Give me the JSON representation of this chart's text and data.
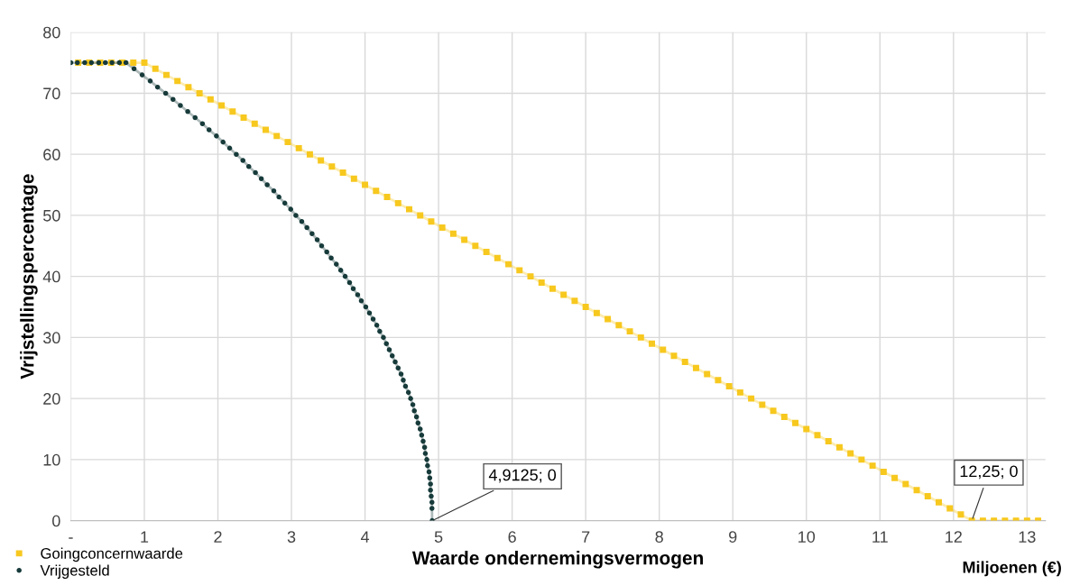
{
  "chart_data": {
    "type": "line",
    "xlabel": "Waarde ondernemingsvermogen",
    "ylabel": "Vrijstellingspercentage",
    "xlim": [
      0,
      13.25
    ],
    "ylim": [
      0,
      80
    ],
    "xticks": [
      {
        "value": 0,
        "label": "-"
      },
      1,
      2,
      3,
      4,
      5,
      6,
      7,
      8,
      9,
      10,
      11,
      12,
      13
    ],
    "yticks": [
      0,
      10,
      20,
      30,
      40,
      50,
      60,
      70,
      80
    ],
    "grid": true,
    "legend": "bottom left",
    "annotations": [
      {
        "text": "4,9125; 0",
        "x": 4.9125,
        "y": 0
      },
      {
        "text": "12,25; 0",
        "x": 12.25,
        "y": 0
      },
      "Miljoenen (€)"
    ],
    "series": [
      {
        "name": "Goingconcernwaarde",
        "color": "#f7c81e",
        "marker": "square",
        "x": [
          0.1,
          0.25,
          0.4,
          0.55,
          0.7,
          0.85,
          1,
          1.15,
          1.3,
          1.45,
          1.6,
          1.75,
          1.9,
          2.05,
          2.2,
          2.35,
          2.5,
          2.65,
          2.8,
          2.95,
          3.1,
          3.25,
          3.4,
          3.55,
          3.7,
          3.85,
          4,
          4.15,
          4.3,
          4.45,
          4.6,
          4.75,
          4.9,
          5.05,
          5.2,
          5.35,
          5.5,
          5.65,
          5.8,
          5.95,
          6.1,
          6.25,
          6.4,
          6.55,
          6.7,
          6.85,
          7,
          7.15,
          7.3,
          7.45,
          7.6,
          7.75,
          7.9,
          8.05,
          8.2,
          8.35,
          8.5,
          8.65,
          8.8,
          8.95,
          9.1,
          9.25,
          9.4,
          9.55,
          9.7,
          9.85,
          10,
          10.15,
          10.3,
          10.45,
          10.6,
          10.75,
          10.9,
          11.05,
          11.2,
          11.35,
          11.5,
          11.65,
          11.8,
          11.95,
          12.1,
          12.25,
          12.4,
          12.55,
          12.7,
          12.85,
          13,
          13.15
        ],
        "values": [
          75,
          75,
          75,
          75,
          75,
          75,
          75,
          74,
          73,
          72,
          71,
          70,
          69,
          68,
          67,
          66,
          65,
          64,
          63,
          62,
          61,
          60,
          59,
          58,
          57,
          56,
          55,
          54,
          53,
          52,
          51,
          50,
          49,
          48,
          47,
          46,
          45,
          44,
          43,
          42,
          41,
          40,
          39,
          38,
          37,
          36,
          35,
          34,
          33,
          32,
          31,
          30,
          29,
          28,
          27,
          26,
          25,
          24,
          23,
          22,
          21,
          20,
          19,
          18,
          17,
          16,
          15,
          14,
          13,
          12,
          11,
          10,
          9,
          8,
          7,
          6,
          5,
          4,
          3,
          2,
          1,
          0,
          0,
          0,
          0,
          0,
          0,
          0
        ]
      },
      {
        "name": "Vrijgesteld",
        "color": "#173a3a",
        "marker": "circle",
        "x": [
          0,
          0.09,
          0.19,
          0.28,
          0.38,
          0.47,
          0.56,
          0.66,
          0.75,
          0.86,
          0.97,
          1.08,
          1.18,
          1.29,
          1.39,
          1.49,
          1.59,
          1.69,
          1.79,
          1.88,
          1.98,
          2.07,
          2.16,
          2.25,
          2.34,
          2.42,
          2.51,
          2.59,
          2.67,
          2.76,
          2.83,
          2.91,
          2.99,
          3.06,
          3.14,
          3.21,
          3.28,
          3.35,
          3.41,
          3.48,
          3.54,
          3.61,
          3.67,
          3.73,
          3.79,
          3.84,
          3.9,
          3.95,
          4.01,
          4.06,
          4.11,
          4.16,
          4.2,
          4.25,
          4.29,
          4.33,
          4.37,
          4.41,
          4.45,
          4.49,
          4.52,
          4.55,
          4.59,
          4.62,
          4.65,
          4.67,
          4.7,
          4.72,
          4.75,
          4.77,
          4.79,
          4.81,
          4.82,
          4.84,
          4.85,
          4.87,
          4.88,
          4.89,
          4.89,
          4.9,
          4.91,
          4.91,
          4.9125
        ],
        "values": [
          75,
          75,
          75,
          75,
          75,
          75,
          75,
          75,
          75,
          74,
          73,
          72,
          71,
          70,
          69,
          68,
          67,
          66,
          65,
          64,
          63,
          62,
          61,
          60,
          59,
          58,
          57,
          56,
          55,
          54,
          53,
          52,
          51,
          50,
          49,
          48,
          47,
          46,
          45,
          44,
          43,
          42,
          41,
          40,
          39,
          38,
          37,
          36,
          35,
          34,
          33,
          32,
          31,
          30,
          29,
          28,
          27,
          26,
          25,
          24,
          23,
          22,
          21,
          20,
          19,
          18,
          17,
          16,
          15,
          14,
          13,
          12,
          11,
          10,
          9,
          8,
          7,
          6,
          5,
          4,
          3,
          2,
          0
        ]
      }
    ]
  }
}
